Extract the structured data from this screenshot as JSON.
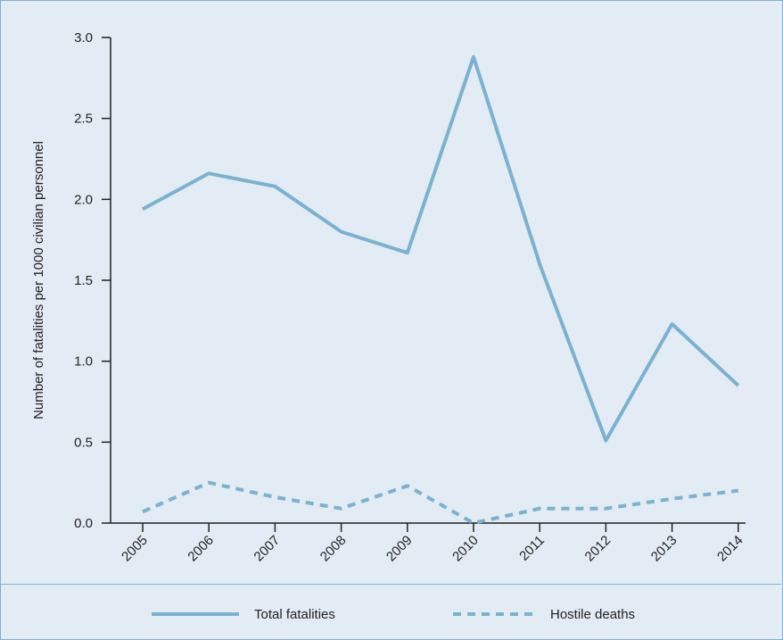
{
  "chart_data": {
    "type": "line",
    "title": "",
    "xlabel": "",
    "ylabel": "Number of fatalities per 1000 civilian personnel",
    "x": [
      "2005",
      "2006",
      "2007",
      "2008",
      "2009",
      "2010",
      "2011",
      "2012",
      "2013",
      "2014"
    ],
    "ylim": [
      0,
      3.0
    ],
    "yticks": [
      "0.0",
      "0.5",
      "1.0",
      "1.5",
      "2.0",
      "2.5",
      "3.0"
    ],
    "grid": false,
    "legend": "bottom",
    "colors": {
      "line": "#7ab2d1",
      "frame": "#7fb2cf",
      "background": "#e3ecf4"
    },
    "series": [
      {
        "name": "Total fatalities",
        "style": "solid",
        "values": [
          1.94,
          2.16,
          2.08,
          1.8,
          1.67,
          2.88,
          1.6,
          0.51,
          1.23,
          0.85
        ]
      },
      {
        "name": "Hostile deaths",
        "style": "dashed",
        "values": [
          0.07,
          0.25,
          0.16,
          0.09,
          0.23,
          0.0,
          0.09,
          0.09,
          0.15,
          0.2
        ]
      }
    ]
  }
}
